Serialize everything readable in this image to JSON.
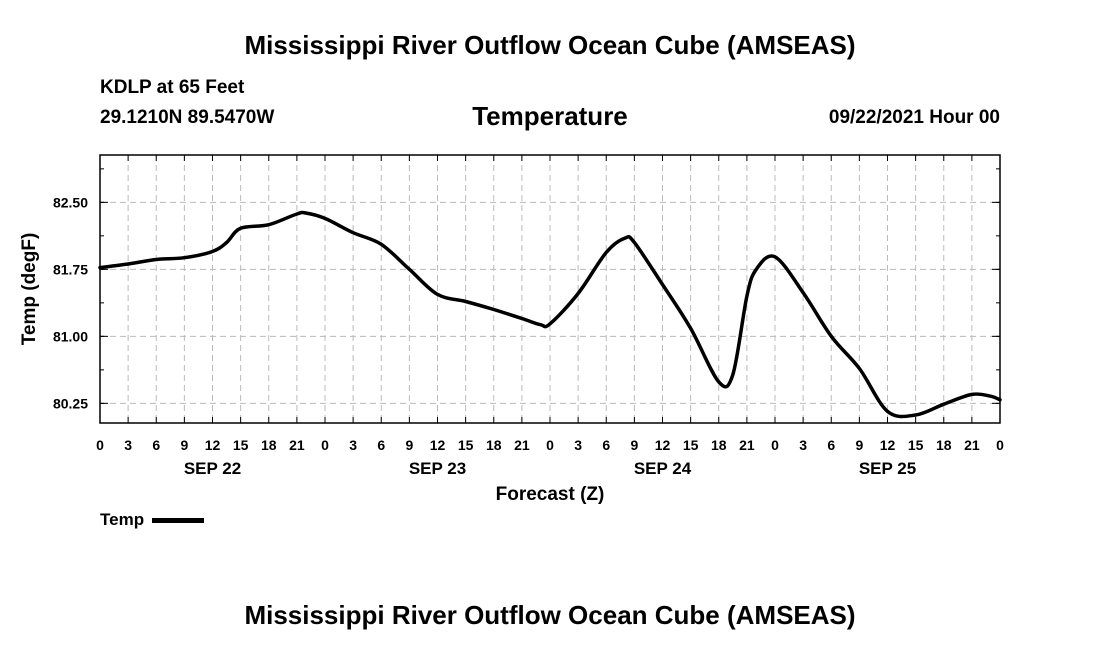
{
  "header": {
    "title": "Mississippi River Outflow Ocean Cube (AMSEAS)",
    "station": "KDLP at 65 Feet",
    "coords": "29.1210N  89.5470W",
    "variable": "Temperature",
    "datetime": "09/22/2021 Hour 00"
  },
  "footer": {
    "title": "Mississippi River Outflow Ocean Cube (AMSEAS)"
  },
  "chart_data": {
    "type": "line",
    "title": "Temperature",
    "xlabel": "Forecast (Z)",
    "ylabel": "Temp (degF)",
    "xlim": [
      0,
      96
    ],
    "ylim": [
      80.03,
      83.03
    ],
    "yticks": [
      80.25,
      81.0,
      81.75,
      82.5
    ],
    "ytick_labels": [
      "80.25",
      "81.00",
      "81.75",
      "82.50"
    ],
    "xtick_step_hours": 3,
    "xtick_labels": [
      "0",
      "3",
      "6",
      "9",
      "12",
      "15",
      "18",
      "21",
      "0",
      "3",
      "6",
      "9",
      "12",
      "15",
      "18",
      "21",
      "0",
      "3",
      "6",
      "9",
      "12",
      "15",
      "18",
      "21",
      "0",
      "3",
      "6",
      "9",
      "12",
      "15",
      "18",
      "21",
      "0"
    ],
    "day_labels": [
      {
        "label": "SEP 22",
        "hour": 12
      },
      {
        "label": "SEP 23",
        "hour": 36
      },
      {
        "label": "SEP 24",
        "hour": 60
      },
      {
        "label": "SEP 25",
        "hour": 84
      }
    ],
    "grid": true,
    "line_color": "#000000",
    "series": [
      {
        "name": "Temp",
        "x": [
          0,
          3,
          6,
          9,
          12,
          13.5,
          15,
          18,
          21,
          22,
          24,
          27,
          30,
          33,
          36,
          39,
          42,
          45,
          47,
          48,
          51,
          54,
          56,
          57,
          60,
          63,
          66,
          67.5,
          69,
          70,
          72,
          75,
          78,
          81,
          84,
          87,
          90,
          93,
          95,
          96
        ],
        "y": [
          81.77,
          81.81,
          81.86,
          81.88,
          81.95,
          82.05,
          82.21,
          82.25,
          82.37,
          82.38,
          82.32,
          82.16,
          82.03,
          81.75,
          81.47,
          81.39,
          81.3,
          81.2,
          81.13,
          81.14,
          81.48,
          81.94,
          82.1,
          82.05,
          81.58,
          81.09,
          80.49,
          80.57,
          81.45,
          81.75,
          81.89,
          81.49,
          81.0,
          80.64,
          80.16,
          80.12,
          80.24,
          80.35,
          80.33,
          80.29
        ]
      }
    ],
    "legend": [
      {
        "label": "Temp",
        "placement": "bottom-left"
      }
    ]
  }
}
